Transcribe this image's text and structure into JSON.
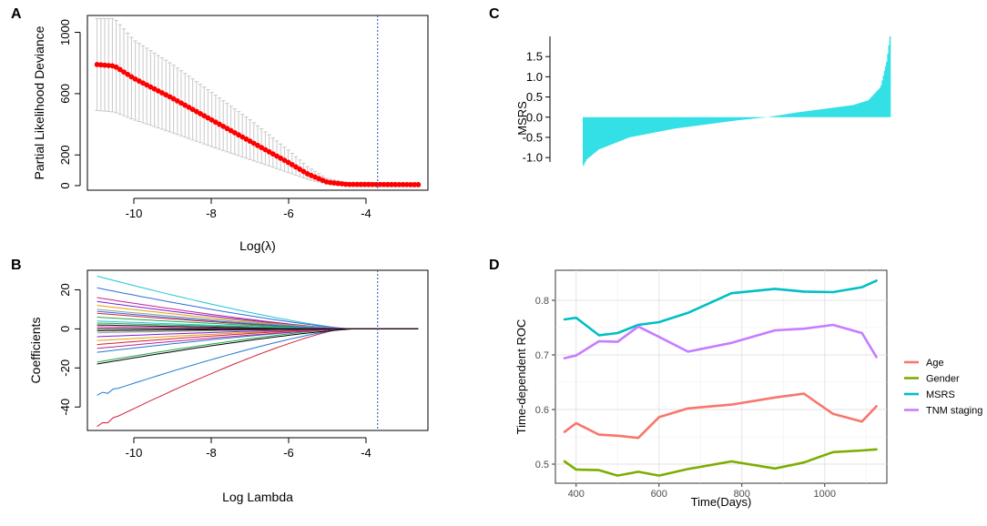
{
  "chart_data": [
    {
      "panel": "A",
      "type": "line",
      "description": "Lasso cross-validation curve with error bars",
      "xlabel": "Log(λ)",
      "ylabel": "Partial Likelihood Deviance",
      "xlim": [
        -11.2,
        -2.4
      ],
      "ylim": [
        -30,
        1110
      ],
      "xticks": [
        -10,
        -8,
        -6,
        -4
      ],
      "xtick_labels": [
        "-10",
        "-8",
        "-6",
        "-4"
      ],
      "yticks": [
        0,
        200,
        600,
        1000
      ],
      "ytick_labels": [
        "0",
        "200",
        "600",
        "1000"
      ],
      "vline_x": -3.7,
      "series": [
        {
          "name": "Partial Likelihood Deviance",
          "color": "#ff0000",
          "x_start": -10.95,
          "x_end": -2.65,
          "n_points": 85,
          "mean_anchor_x": [
            -10.95,
            -10.5,
            -10,
            -9,
            -8,
            -7,
            -6,
            -5.5,
            -5,
            -4.5,
            -2.65
          ],
          "mean_anchor_y": [
            790,
            780,
            700,
            570,
            430,
            290,
            150,
            75,
            22,
            8,
            6
          ],
          "upper_anchor_y": [
            1090,
            1090,
            950,
            790,
            610,
            430,
            230,
            120,
            45,
            20,
            18
          ],
          "lower_anchor_y": [
            490,
            480,
            430,
            345,
            255,
            170,
            85,
            40,
            10,
            2,
            2
          ]
        }
      ],
      "errorbar_color": "#c8c8c8"
    },
    {
      "panel": "B",
      "type": "line",
      "description": "Lasso coefficient profiles",
      "xlabel": "Log Lambda",
      "ylabel": "Coefficients",
      "xlim": [
        -11.2,
        -2.4
      ],
      "ylim": [
        -52,
        30
      ],
      "xticks": [
        -10,
        -8,
        -6,
        -4
      ],
      "xtick_labels": [
        "-10",
        "-8",
        "-6",
        "-4"
      ],
      "yticks": [
        -40,
        -20,
        0,
        20
      ],
      "ytick_labels": [
        "-40",
        "-20",
        "0",
        "20"
      ],
      "vline_x": -3.7,
      "series": [
        {
          "name": "coef-1",
          "color": "#d0213a",
          "y0": -50
        },
        {
          "name": "coef-2",
          "color": "#1f78d1",
          "y0": -34
        },
        {
          "name": "coef-3",
          "color": "#1fc5d6",
          "y0": 27
        },
        {
          "name": "coef-4",
          "color": "#2a6fd8",
          "y0": 21
        },
        {
          "name": "coef-5",
          "color": "#000000",
          "y0": -18
        },
        {
          "name": "coef-6",
          "color": "#22a84a",
          "y0": -17
        },
        {
          "name": "coef-7",
          "color": "#c0238f",
          "y0": 16
        },
        {
          "name": "coef-8",
          "color": "#7a1fd8",
          "y0": 14
        },
        {
          "name": "coef-9",
          "color": "#e6a000",
          "y0": 12
        },
        {
          "name": "coef-10",
          "color": "#999999",
          "y0": 10
        },
        {
          "name": "coef-11",
          "color": "#d0213a",
          "y0": 8
        },
        {
          "name": "coef-12",
          "color": "#1f78d1",
          "y0": -12
        },
        {
          "name": "coef-13",
          "color": "#22a84a",
          "y0": 6
        },
        {
          "name": "coef-14",
          "color": "#c0238f",
          "y0": -10
        },
        {
          "name": "coef-15",
          "color": "#1fc5d6",
          "y0": 4
        },
        {
          "name": "coef-16",
          "color": "#000000",
          "y0": 2
        },
        {
          "name": "coef-17",
          "color": "#e6a000",
          "y0": -6
        },
        {
          "name": "coef-18",
          "color": "#7a1fd8",
          "y0": -4
        },
        {
          "name": "coef-19",
          "color": "#999999",
          "y0": -2
        },
        {
          "name": "coef-20",
          "color": "#22a84a",
          "y0": 3
        },
        {
          "name": "coef-21",
          "color": "#d0213a",
          "y0": -8
        },
        {
          "name": "coef-22",
          "color": "#2a6fd8",
          "y0": 9
        },
        {
          "name": "coef-23",
          "color": "#000000",
          "y0": -1
        },
        {
          "name": "coef-24",
          "color": "#c0238f",
          "y0": 1
        },
        {
          "name": "coef-25",
          "color": "#000000",
          "y0": 0
        }
      ]
    },
    {
      "panel": "C",
      "type": "bar",
      "description": "Sorted MSRS values per patient (waterfall)",
      "ylabel": "MSRS",
      "ylim": [
        -1.2,
        2.0
      ],
      "yticks": [
        -1.0,
        -0.5,
        0.0,
        0.5,
        1.0,
        1.5
      ],
      "ytick_labels": [
        "-1.0",
        "-0.5",
        "0.0",
        "0.5",
        "1.0",
        "1.5"
      ],
      "bar_color": "#33e0e5",
      "n_bars": 280,
      "curve_anchor_t": [
        0,
        0.01,
        0.05,
        0.15,
        0.3,
        0.5,
        0.6,
        0.7,
        0.8,
        0.88,
        0.93,
        0.97,
        0.99,
        1.0
      ],
      "curve_anchor_y": [
        -1.2,
        -1.05,
        -0.8,
        -0.5,
        -0.28,
        -0.08,
        0.0,
        0.12,
        0.22,
        0.3,
        0.42,
        0.75,
        1.4,
        2.0
      ]
    },
    {
      "panel": "D",
      "type": "line",
      "description": "Time-dependent ROC",
      "xlabel": "Time(Days)",
      "ylabel": "Time-dependent ROC",
      "xlim": [
        350,
        1150
      ],
      "ylim": [
        0.465,
        0.855
      ],
      "xticks": [
        400,
        600,
        800,
        1000
      ],
      "xtick_labels": [
        "400",
        "600",
        "800",
        "1000"
      ],
      "yticks": [
        0.5,
        0.6,
        0.7,
        0.8
      ],
      "ytick_labels": [
        "0.5",
        "0.6",
        "0.7",
        "0.8"
      ],
      "legend_position": "right",
      "series": [
        {
          "name": "Age",
          "color": "#f8766d",
          "x": [
            372,
            400,
            455,
            500,
            550,
            600,
            670,
            775,
            880,
            950,
            1020,
            1090,
            1125
          ],
          "y": [
            0.559,
            0.575,
            0.554,
            0.552,
            0.548,
            0.586,
            0.602,
            0.609,
            0.622,
            0.629,
            0.592,
            0.578,
            0.606
          ]
        },
        {
          "name": "Gender",
          "color": "#7cae00",
          "x": [
            372,
            400,
            455,
            500,
            550,
            600,
            670,
            775,
            880,
            950,
            1020,
            1090,
            1125
          ],
          "y": [
            0.505,
            0.49,
            0.489,
            0.479,
            0.486,
            0.479,
            0.491,
            0.505,
            0.492,
            0.503,
            0.522,
            0.525,
            0.527
          ]
        },
        {
          "name": "MSRS",
          "color": "#00bfc4",
          "x": [
            372,
            400,
            455,
            500,
            550,
            600,
            670,
            775,
            880,
            950,
            1020,
            1090,
            1125
          ],
          "y": [
            0.765,
            0.768,
            0.736,
            0.74,
            0.755,
            0.76,
            0.777,
            0.813,
            0.821,
            0.816,
            0.815,
            0.824,
            0.836
          ]
        },
        {
          "name": "TNM staging",
          "color": "#c77cff",
          "x": [
            372,
            400,
            455,
            500,
            550,
            600,
            670,
            775,
            880,
            950,
            1020,
            1090,
            1125
          ],
          "y": [
            0.694,
            0.699,
            0.725,
            0.724,
            0.752,
            0.733,
            0.706,
            0.722,
            0.745,
            0.748,
            0.755,
            0.74,
            0.696
          ]
        }
      ]
    }
  ],
  "panels": {
    "A": {
      "letter": "A",
      "ylabel": "Partial Likelihood Deviance",
      "xlabel_prefix": "Log(",
      "xlabel_symbol": "λ",
      "xlabel_suffix": ")"
    },
    "B": {
      "letter": "B",
      "ylabel": "Coefficients",
      "xlabel": "Log Lambda"
    },
    "C": {
      "letter": "C",
      "ylabel": "MSRS"
    },
    "D": {
      "letter": "D",
      "ylabel": "Time-dependent ROC",
      "xlabel": "Time(Days)",
      "legend_items": [
        "Age",
        "Gender",
        "MSRS",
        "TNM staging"
      ]
    }
  }
}
